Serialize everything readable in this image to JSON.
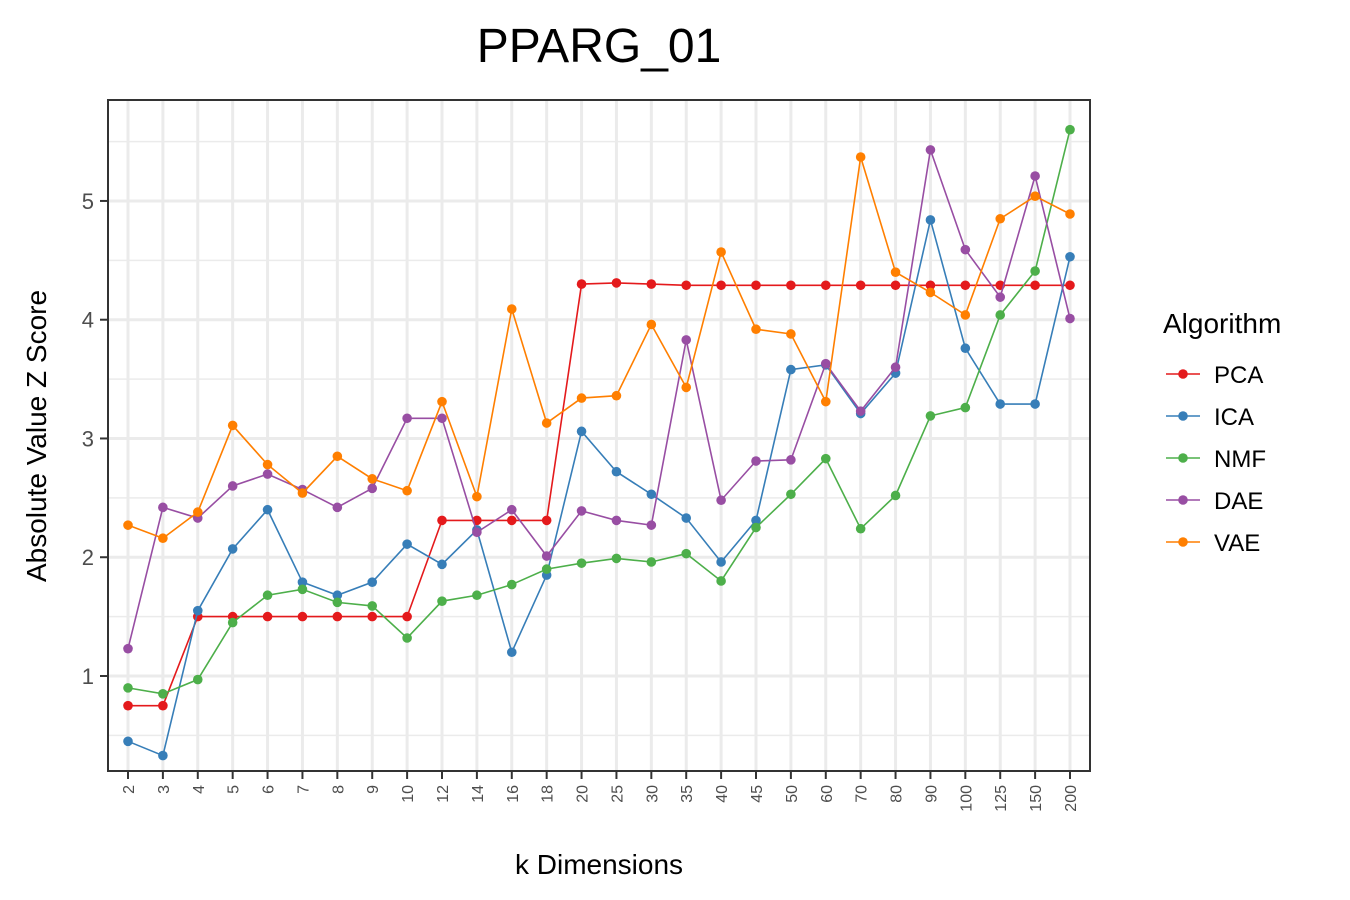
{
  "chart_data": {
    "type": "line",
    "title": "PPARG_01",
    "xlabel": "k Dimensions",
    "ylabel": "Absolute Value Z Score",
    "categories": [
      "2",
      "3",
      "4",
      "5",
      "6",
      "7",
      "8",
      "9",
      "10",
      "12",
      "14",
      "16",
      "18",
      "20",
      "25",
      "30",
      "35",
      "40",
      "45",
      "50",
      "60",
      "70",
      "80",
      "90",
      "100",
      "125",
      "150",
      "200"
    ],
    "yticks": [
      1,
      2,
      3,
      4,
      5
    ],
    "ylim": [
      0.2,
      5.85
    ],
    "grid": true,
    "legend": {
      "title": "Algorithm",
      "placement": "right"
    },
    "series": [
      {
        "name": "PCA",
        "color": "#e41a1c",
        "values": [
          0.75,
          0.75,
          1.5,
          1.5,
          1.5,
          1.5,
          1.5,
          1.5,
          1.5,
          2.31,
          2.31,
          2.31,
          2.31,
          4.3,
          4.31,
          4.3,
          4.29,
          4.29,
          4.29,
          4.29,
          4.29,
          4.29,
          4.29,
          4.29,
          4.29,
          4.29,
          4.29,
          4.29
        ]
      },
      {
        "name": "ICA",
        "color": "#377eb8",
        "values": [
          0.45,
          0.33,
          1.55,
          2.07,
          2.4,
          1.79,
          1.68,
          1.79,
          2.11,
          1.94,
          2.23,
          1.2,
          1.85,
          3.06,
          2.72,
          2.53,
          2.33,
          1.96,
          2.31,
          3.58,
          3.62,
          3.21,
          3.55,
          4.84,
          3.76,
          3.29,
          3.29,
          4.53
        ]
      },
      {
        "name": "NMF",
        "color": "#4daf4a",
        "values": [
          0.9,
          0.85,
          0.97,
          1.45,
          1.68,
          1.73,
          1.62,
          1.59,
          1.32,
          1.63,
          1.68,
          1.77,
          1.9,
          1.95,
          1.99,
          1.96,
          2.03,
          1.8,
          2.25,
          2.53,
          2.83,
          2.24,
          2.52,
          3.19,
          3.26,
          4.04,
          4.41,
          5.6
        ]
      },
      {
        "name": "DAE",
        "color": "#984ea3",
        "values": [
          1.23,
          2.42,
          2.33,
          2.6,
          2.7,
          2.57,
          2.42,
          2.58,
          3.17,
          3.17,
          2.21,
          2.4,
          2.01,
          2.39,
          2.31,
          2.27,
          3.83,
          2.48,
          2.81,
          2.82,
          3.63,
          3.23,
          3.6,
          5.43,
          4.59,
          4.19,
          5.21,
          4.01
        ]
      },
      {
        "name": "VAE",
        "color": "#ff7f00",
        "values": [
          2.27,
          2.16,
          2.38,
          3.11,
          2.78,
          2.54,
          2.85,
          2.66,
          2.56,
          3.31,
          2.51,
          4.09,
          3.13,
          3.34,
          3.36,
          3.96,
          3.43,
          4.57,
          3.92,
          3.88,
          3.31,
          5.37,
          4.4,
          4.23,
          4.04,
          4.85,
          5.04,
          4.89
        ]
      }
    ]
  }
}
